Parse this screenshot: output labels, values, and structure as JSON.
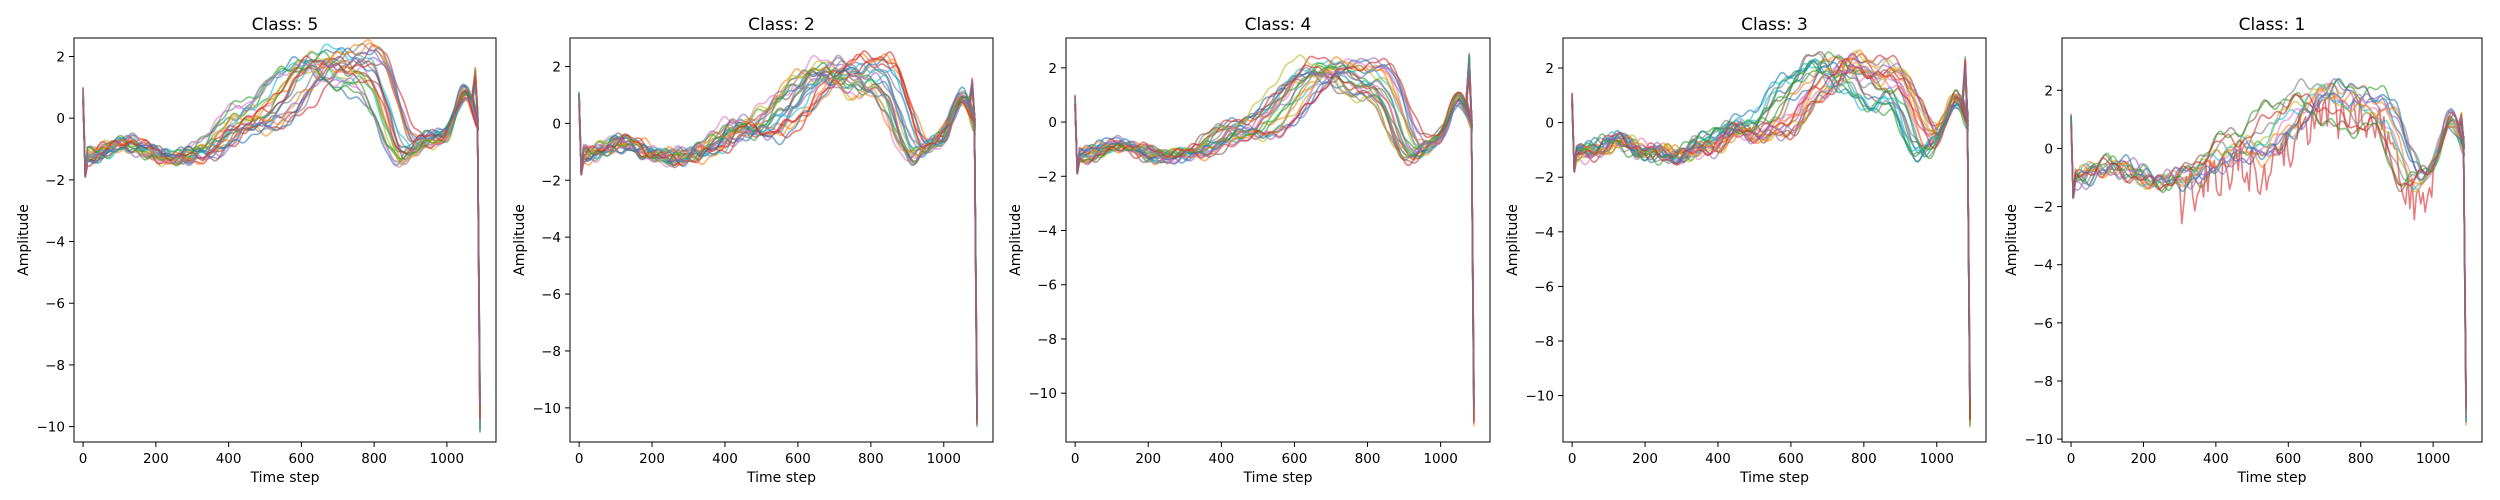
{
  "chart_data": [
    {
      "type": "line",
      "title": "Class: 5",
      "xlabel": "Time step",
      "ylabel": "Amplitude",
      "xlim": [
        -25,
        1135
      ],
      "ylim": [
        -10.5,
        2.6
      ],
      "xticks": [
        0,
        200,
        400,
        600,
        800,
        1000
      ],
      "yticks": [
        -10,
        -8,
        -6,
        -4,
        -2,
        0,
        2
      ],
      "n_series": 25,
      "length": 1092,
      "shape": {
        "base": -1.3,
        "peak": 2.05,
        "peak_t": 665,
        "bump_t": 800,
        "dip_t": 880,
        "end_peak": 1.5,
        "end_min": -10.0,
        "noise": 0.12
      }
    },
    {
      "type": "line",
      "title": "Class: 2",
      "xlabel": "Time step",
      "ylabel": "Amplitude",
      "xlim": [
        -25,
        1135
      ],
      "ylim": [
        -11.2,
        3.0
      ],
      "xticks": [
        0,
        200,
        400,
        600,
        800,
        1000
      ],
      "yticks": [
        -10,
        -8,
        -6,
        -4,
        -2,
        0,
        2
      ],
      "n_series": 25,
      "length": 1092,
      "shape": {
        "base": -1.2,
        "peak": 2.1,
        "peak_t": 700,
        "bump_t": 840,
        "dip_t": 920,
        "end_peak": 1.5,
        "end_min": -10.5,
        "noise": 0.15
      }
    },
    {
      "type": "line",
      "title": "Class: 4",
      "xlabel": "Time step",
      "ylabel": "Amplitude",
      "xlim": [
        -25,
        1135
      ],
      "ylim": [
        -11.8,
        3.1
      ],
      "xticks": [
        0,
        200,
        400,
        600,
        800,
        1000
      ],
      "yticks": [
        -10,
        -8,
        -6,
        -4,
        -2,
        0,
        2
      ],
      "n_series": 25,
      "length": 1092,
      "shape": {
        "base": -1.3,
        "peak": 2.15,
        "peak_t": 690,
        "bump_t": 840,
        "dip_t": 920,
        "end_peak": 2.3,
        "end_min": -11.0,
        "noise": 0.12
      }
    },
    {
      "type": "line",
      "title": "Class: 3",
      "xlabel": "Time step",
      "ylabel": "Amplitude",
      "xlim": [
        -25,
        1135
      ],
      "ylim": [
        -11.7,
        3.1
      ],
      "xticks": [
        0,
        200,
        400,
        600,
        800,
        1000
      ],
      "yticks": [
        -10,
        -8,
        -6,
        -4,
        -2,
        0,
        2
      ],
      "n_series": 25,
      "length": 1092,
      "shape": {
        "base": -1.2,
        "peak": 2.3,
        "peak_t": 720,
        "bump_t": 900,
        "dip_t": 960,
        "end_peak": 2.2,
        "end_min": -11.0,
        "noise": 0.18
      }
    },
    {
      "type": "line",
      "title": "Class: 1",
      "xlabel": "Time step",
      "ylabel": "Amplitude",
      "xlim": [
        -25,
        1135
      ],
      "ylim": [
        -10.1,
        3.8
      ],
      "xticks": [
        0,
        200,
        400,
        600,
        800,
        1000
      ],
      "yticks": [
        -10,
        -8,
        -6,
        -4,
        -2,
        0,
        2
      ],
      "n_series": 15,
      "length": 1092,
      "shape": {
        "base": -1.1,
        "peak": 2.1,
        "peak_t": 680,
        "bump_t": 860,
        "dip_t": 940,
        "end_peak": 1.2,
        "end_min": -9.5,
        "noise": 0.2,
        "noisy_series": 1
      }
    }
  ],
  "palette": [
    "#1f77b4",
    "#ff7f0e",
    "#2ca02c",
    "#d62728",
    "#9467bd",
    "#8c564b",
    "#e377c2",
    "#7f7f7f",
    "#bcbd22",
    "#17becf"
  ]
}
